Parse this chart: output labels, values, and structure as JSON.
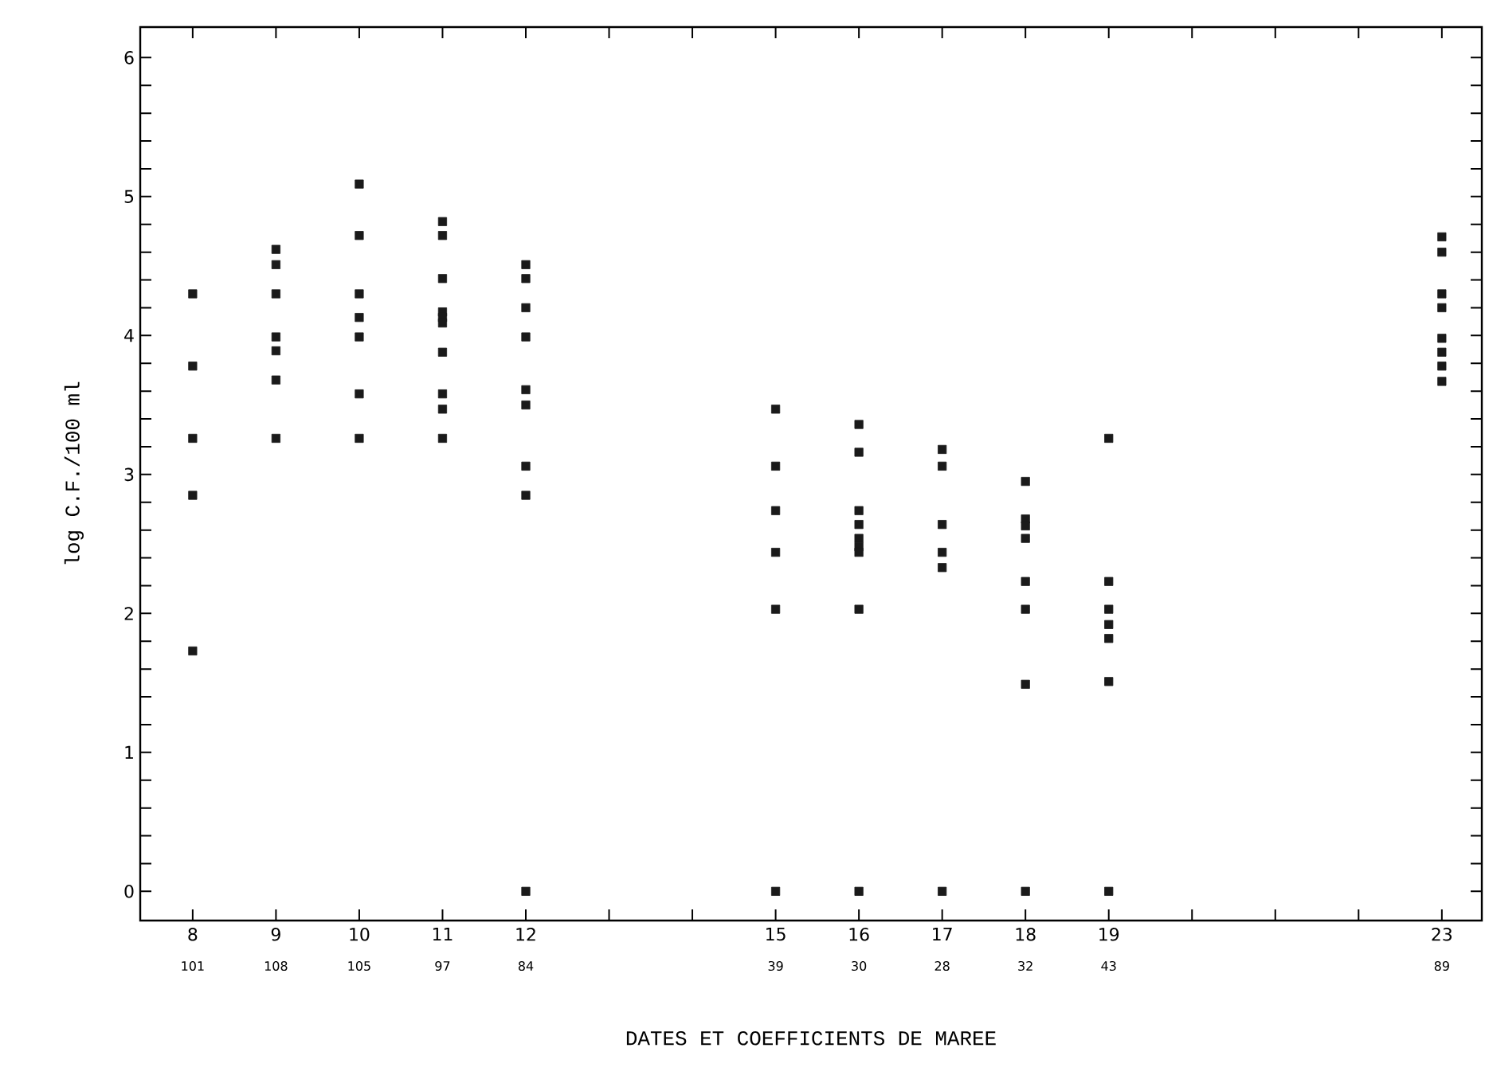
{
  "chart_data": {
    "type": "scatter",
    "xlabel": "DATES ET COEFFICIENTS DE MAREE",
    "ylabel": "log C.F./100 ml",
    "series": [
      {
        "color": "#1a1a1a",
        "x": [
          8,
          8,
          8,
          8,
          8,
          9,
          9,
          9,
          9,
          9,
          9,
          9,
          10,
          10,
          10,
          10,
          10,
          10,
          10,
          11,
          11,
          11,
          11,
          11,
          11,
          11,
          11,
          11,
          11,
          12,
          12,
          12,
          12,
          12,
          12,
          12,
          12,
          12,
          15,
          15,
          15,
          15,
          15,
          15,
          16,
          16,
          16,
          16,
          16,
          16,
          16,
          16,
          16,
          17,
          17,
          17,
          17,
          17,
          17,
          18,
          18,
          18,
          18,
          18,
          18,
          18,
          18,
          19,
          19,
          19,
          19,
          19,
          19,
          19,
          23,
          23,
          23,
          23,
          23,
          23,
          23,
          23
        ],
        "values": [
          4.3,
          3.78,
          3.26,
          2.85,
          1.73,
          4.62,
          4.51,
          4.3,
          3.99,
          3.89,
          3.68,
          3.26,
          5.09,
          4.72,
          4.3,
          4.13,
          3.99,
          3.58,
          3.26,
          4.82,
          4.72,
          4.41,
          4.17,
          4.13,
          4.09,
          3.88,
          3.58,
          3.47,
          3.26,
          4.51,
          4.41,
          4.2,
          3.99,
          3.61,
          3.5,
          3.06,
          2.85,
          0,
          3.47,
          3.06,
          2.74,
          2.44,
          2.03,
          0,
          3.36,
          3.16,
          2.74,
          2.64,
          2.54,
          2.48,
          2.44,
          2.03,
          0,
          3.18,
          3.06,
          2.64,
          2.44,
          2.33,
          0,
          2.95,
          2.68,
          2.63,
          2.54,
          2.23,
          2.03,
          1.49,
          0,
          3.26,
          2.23,
          2.03,
          1.92,
          1.82,
          1.51,
          0,
          4.71,
          4.6,
          4.3,
          4.2,
          3.98,
          3.88,
          3.78,
          3.67
        ]
      }
    ],
    "marker": "square",
    "xlim": [
      7.37,
      23.48
    ],
    "ylim": [
      -0.21,
      6.22
    ],
    "xticks": [
      8,
      9,
      10,
      11,
      12,
      {
        "value": 13,
        "label": null
      },
      {
        "value": 14,
        "label": null
      },
      15,
      16,
      17,
      18,
      19,
      {
        "value": 20,
        "label": null
      },
      {
        "value": 21,
        "label": null
      },
      {
        "value": 22,
        "label": null
      },
      23
    ],
    "yticks": [
      0,
      {
        "value": 0.2,
        "label": null
      },
      {
        "value": 0.4,
        "label": null
      },
      {
        "value": 0.6,
        "label": null
      },
      {
        "value": 0.8,
        "label": null
      },
      1,
      {
        "value": 1.2,
        "label": null
      },
      {
        "value": 1.4,
        "label": null
      },
      {
        "value": 1.6,
        "label": null
      },
      {
        "value": 1.8,
        "label": null
      },
      2,
      {
        "value": 2.2,
        "label": null
      },
      {
        "value": 2.4,
        "label": null
      },
      {
        "value": 2.6,
        "label": null
      },
      {
        "value": 2.8,
        "label": null
      },
      3,
      {
        "value": 3.2,
        "label": null
      },
      {
        "value": 3.4,
        "label": null
      },
      {
        "value": 3.6,
        "label": null
      },
      {
        "value": 3.8,
        "label": null
      },
      4,
      {
        "value": 4.2,
        "label": null
      },
      {
        "value": 4.4,
        "label": null
      },
      {
        "value": 4.6,
        "label": null
      },
      {
        "value": 4.8,
        "label": null
      },
      5,
      {
        "value": 5.2,
        "label": null
      },
      {
        "value": 5.4,
        "label": null
      },
      {
        "value": 5.6,
        "label": null
      },
      {
        "value": 5.8,
        "label": null
      },
      6
    ],
    "annotations": [
      "101",
      "108",
      "105",
      "97",
      "84",
      "39",
      "30",
      "28",
      "32",
      "43",
      "89"
    ],
    "grid": false
  }
}
